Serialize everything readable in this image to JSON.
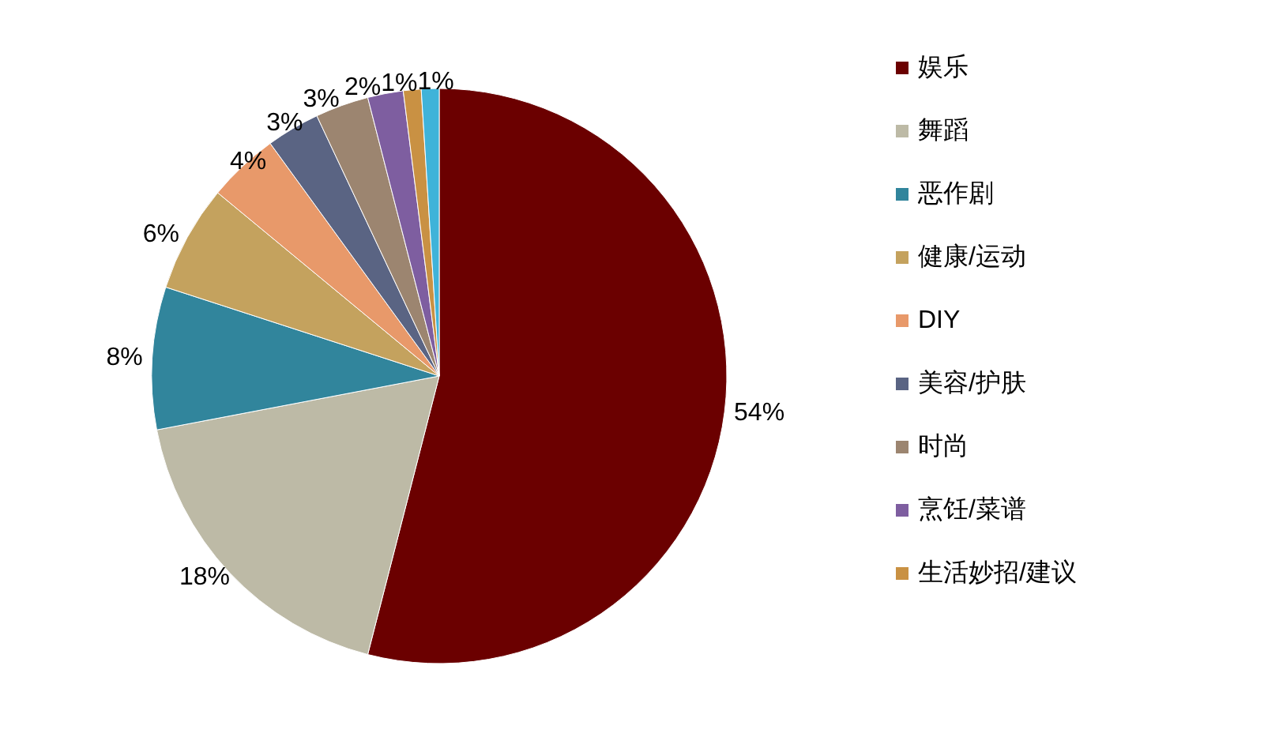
{
  "chart_data": {
    "type": "pie",
    "categories": [
      "娱乐",
      "舞蹈",
      "恶作剧",
      "健康/运动",
      "DIY",
      "美容/护肤",
      "时尚",
      "烹饪/菜谱",
      "生活妙招/建议",
      null
    ],
    "values": [
      54,
      18,
      8,
      6,
      4,
      3,
      3,
      2,
      1,
      1
    ],
    "colors": [
      "#6b0000",
      "#bdbaa6",
      "#31859c",
      "#c4a25e",
      "#e8996a",
      "#5a6483",
      "#9c8570",
      "#7e5ea0",
      "#c99143",
      "#3fb3d9"
    ],
    "value_labels": [
      "54%",
      "18%",
      "8%",
      "6%",
      "4%",
      "3%",
      "3%",
      "2%",
      "1%",
      "1%"
    ],
    "legend": "right"
  }
}
